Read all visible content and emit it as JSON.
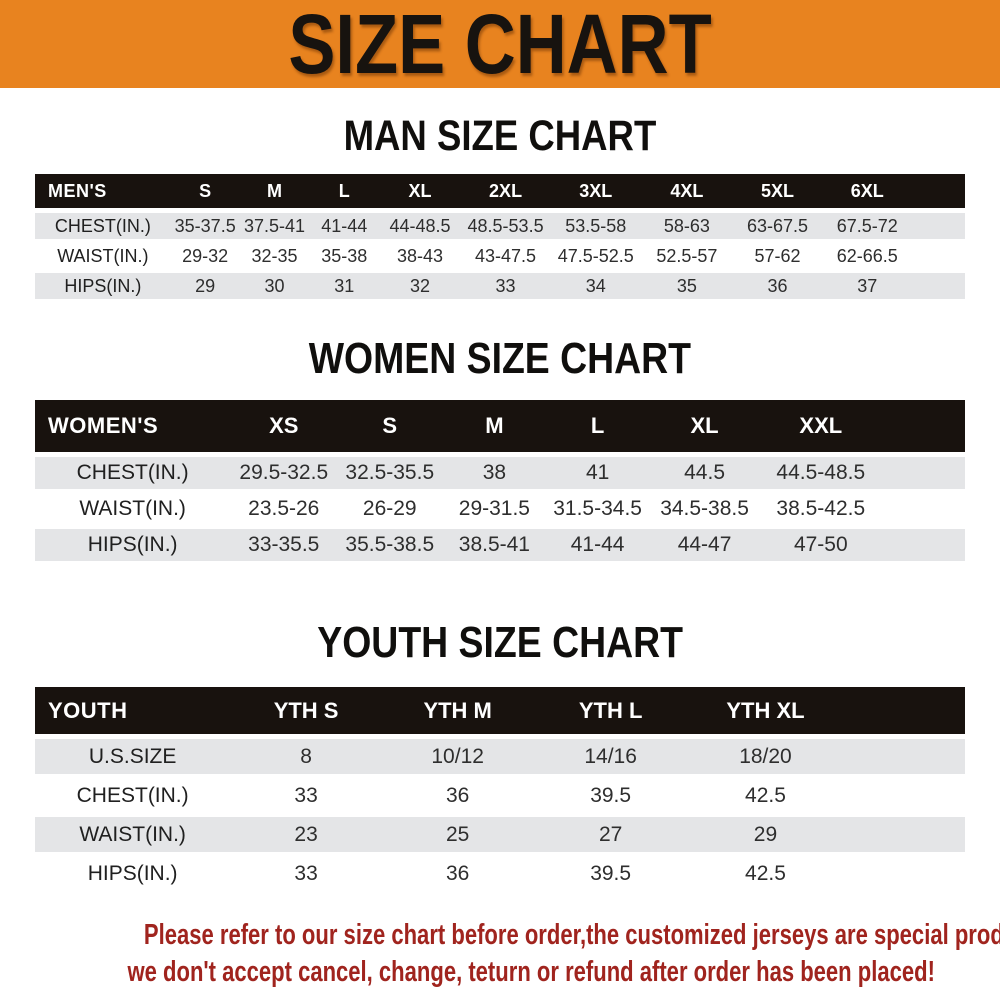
{
  "banner": {
    "title": "SIZE CHART",
    "bg_color": "#E8831F",
    "text_color": "#17130F"
  },
  "sections": [
    {
      "id": "men",
      "heading": "MAN SIZE CHART",
      "corner_label": "MEN'S",
      "columns": [
        "S",
        "M",
        "L",
        "XL",
        "2XL",
        "3XL",
        "4XL",
        "5XL",
        "6XL"
      ],
      "rows": [
        {
          "label": "CHEST(IN.)",
          "values": [
            "35-37.5",
            "37.5-41",
            "41-44",
            "44-48.5",
            "48.5-53.5",
            "53.5-58",
            "58-63",
            "63-67.5",
            "67.5-72"
          ]
        },
        {
          "label": "WAIST(IN.)",
          "values": [
            "29-32",
            "32-35",
            "35-38",
            "38-43",
            "43-47.5",
            "47.5-52.5",
            "52.5-57",
            "57-62",
            "62-66.5"
          ]
        },
        {
          "label": "HIPS(IN.)",
          "values": [
            "29",
            "30",
            "31",
            "32",
            "33",
            "34",
            "35",
            "36",
            "37"
          ]
        }
      ]
    },
    {
      "id": "women",
      "heading": "WOMEN SIZE CHART",
      "corner_label": "WOMEN'S",
      "columns": [
        "XS",
        "S",
        "M",
        "L",
        "XL",
        "XXL"
      ],
      "rows": [
        {
          "label": "CHEST(IN.)",
          "values": [
            "29.5-32.5",
            "32.5-35.5",
            "38",
            "41",
            "44.5",
            "44.5-48.5"
          ]
        },
        {
          "label": "WAIST(IN.)",
          "values": [
            "23.5-26",
            "26-29",
            "29-31.5",
            "31.5-34.5",
            "34.5-38.5",
            "38.5-42.5"
          ]
        },
        {
          "label": "HIPS(IN.)",
          "values": [
            "33-35.5",
            "35.5-38.5",
            "38.5-41",
            "41-44",
            "44-47",
            "47-50"
          ]
        }
      ]
    },
    {
      "id": "youth",
      "heading": "YOUTH SIZE CHART",
      "corner_label": "YOUTH",
      "columns": [
        "YTH S",
        "YTH M",
        "YTH L",
        "YTH XL"
      ],
      "rows": [
        {
          "label": "U.S.SIZE",
          "values": [
            "8",
            "10/12",
            "14/16",
            "18/20"
          ]
        },
        {
          "label": "CHEST(IN.)",
          "values": [
            "33",
            "36",
            "39.5",
            "42.5"
          ]
        },
        {
          "label": "WAIST(IN.)",
          "values": [
            "23",
            "25",
            "27",
            "29"
          ]
        },
        {
          "label": "HIPS(IN.)",
          "values": [
            "33",
            "36",
            "39.5",
            "42.5"
          ]
        }
      ]
    }
  ],
  "footer": {
    "line1": "Please refer to our size chart before order,the customized jerseys are special products,",
    "line2": "we don't accept cancel, change, teturn or refund after order has been placed!",
    "text_color": "#A0241E"
  },
  "colors": {
    "banner_bg": "#E8831F",
    "table_header_bg": "#18120E",
    "row_alt_bg": "#E4E5E7"
  }
}
